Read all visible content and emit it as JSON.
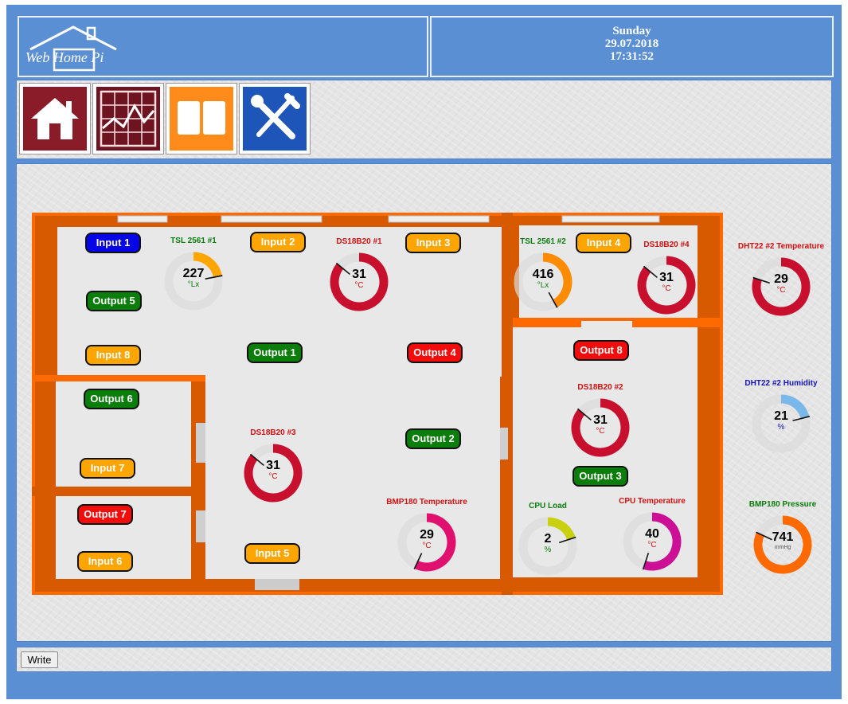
{
  "header": {
    "logo_text": "Web Home Pi",
    "day": "Sunday",
    "date": "29.07.2018",
    "time": "17:31:52"
  },
  "toolbar": {
    "items": [
      {
        "name": "home",
        "icon": "house-icon",
        "color": "#8a1c2a"
      },
      {
        "name": "charts",
        "icon": "chart-icon",
        "color": "#6e1420"
      },
      {
        "name": "log",
        "icon": "book-icon",
        "color": "#ff8c1a"
      },
      {
        "name": "settings",
        "icon": "tools-icon",
        "color": "#1d56b8"
      }
    ]
  },
  "pills": {
    "input_1": "Input 1",
    "input_2": "Input 2",
    "input_3": "Input 3",
    "input_4": "Input 4",
    "input_5": "Input 5",
    "input_6": "Input 6",
    "input_7": "Input 7",
    "input_8": "Input 8",
    "output_1": "Output 1",
    "output_2": "Output 2",
    "output_3": "Output 3",
    "output_4": "Output 4",
    "output_5": "Output 5",
    "output_6": "Output 6",
    "output_7": "Output 7",
    "output_8": "Output 8"
  },
  "colors": {
    "input_active": "#0505e8",
    "input_idle": "#ffa500",
    "output_on": "#0a7d0a",
    "output_off": "#f20c0c",
    "wall": "#ff6a00",
    "floor": "#e8e8e8",
    "frame": "#5b8fd4"
  },
  "gauges": {
    "tsl1": {
      "title": "TSL 2561 #1",
      "value": "227",
      "unit": "°Lx",
      "fraction": 0.22,
      "color": "#ffa500",
      "title_color": "#0a7d0a",
      "unit_color": "#0a7d0a"
    },
    "tsl2": {
      "title": "TSL 2561 #2",
      "value": "416",
      "unit": "°Lx",
      "fraction": 0.42,
      "color": "#ff8c00",
      "title_color": "#0a7d0a",
      "unit_color": "#0a7d0a"
    },
    "ds1": {
      "title": "DS18B20 #1",
      "value": "31",
      "unit": "°C",
      "fraction": 0.86,
      "color": "#c8102e",
      "title_color": "#d01010",
      "unit_color": "#d01010"
    },
    "ds2": {
      "title": "DS18B20 #2",
      "value": "31",
      "unit": "°C",
      "fraction": 0.86,
      "color": "#c8102e",
      "title_color": "#d01010",
      "unit_color": "#d01010"
    },
    "ds3": {
      "title": "DS18B20 #3",
      "value": "31",
      "unit": "°C",
      "fraction": 0.86,
      "color": "#c8102e",
      "title_color": "#d01010",
      "unit_color": "#d01010"
    },
    "ds4": {
      "title": "DS18B20 #4",
      "value": "31",
      "unit": "°C",
      "fraction": 0.86,
      "color": "#c8102e",
      "title_color": "#d01010",
      "unit_color": "#d01010"
    },
    "bmp_t": {
      "title": "BMP180 Temperature",
      "value": "29",
      "unit": "°C",
      "fraction": 0.57,
      "color": "#e0106e",
      "title_color": "#d01010",
      "unit_color": "#d01010"
    },
    "cpu_load": {
      "title": "CPU Load",
      "value": "2",
      "unit": "%",
      "fraction": 0.2,
      "color": "#c8d010",
      "title_color": "#0a7d0a",
      "unit_color": "#0a7d0a"
    },
    "cpu_temp": {
      "title": "CPU Temperature",
      "value": "40",
      "unit": "°C",
      "fraction": 0.55,
      "color": "#cc1096",
      "title_color": "#d01010",
      "unit_color": "#d01010"
    },
    "dht_t": {
      "title": "DHT22 #2 Temperature",
      "value": "29",
      "unit": "°C",
      "fraction": 0.8,
      "color": "#c8102e",
      "title_color": "#d01010",
      "unit_color": "#d01010"
    },
    "dht_h": {
      "title": "DHT22 #2 Humidity",
      "value": "21",
      "unit": "%",
      "fraction": 0.21,
      "color": "#7ab8ea",
      "title_color": "#1414b8",
      "unit_color": "#1414b8"
    },
    "bmp_p": {
      "title": "BMP180 Pressure",
      "value": "741",
      "unit": "mmHg",
      "fraction": 0.82,
      "color": "#ff6a00",
      "title_color": "#0a7d0a",
      "unit_color": "#555555"
    }
  },
  "footer": {
    "write_label": "Write"
  }
}
